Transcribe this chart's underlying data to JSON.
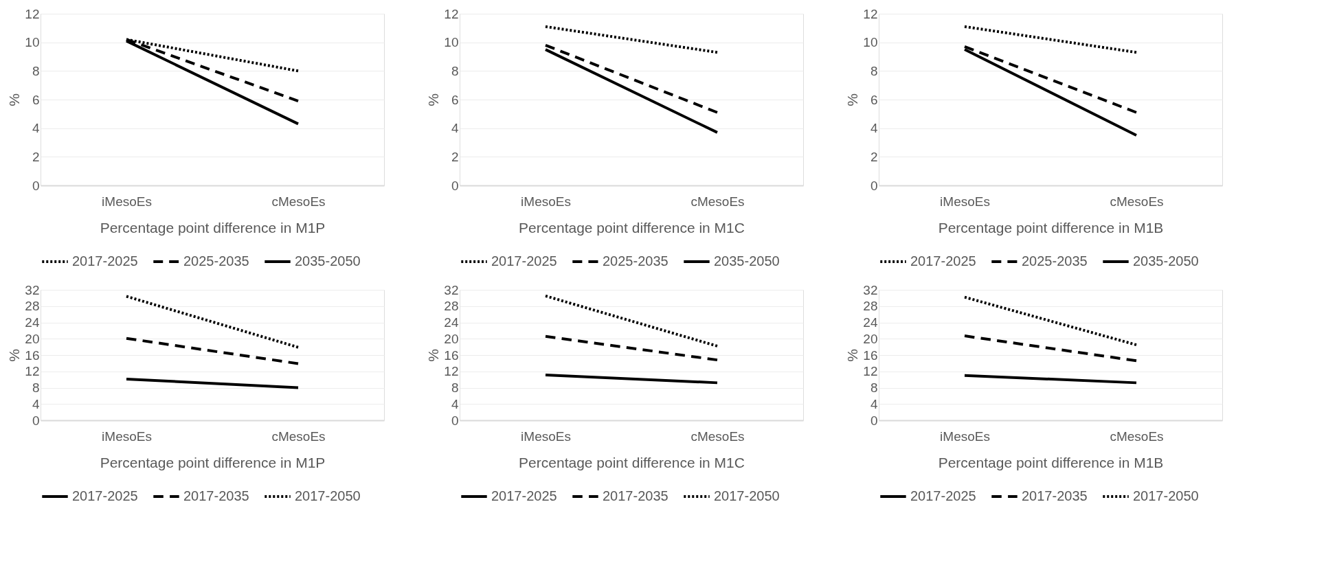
{
  "chart_data": [
    {
      "type": "line",
      "xlabel": "Percentage point difference in M1P",
      "ylabel": "%",
      "categories": [
        "iMesoEs",
        "cMesoEs"
      ],
      "ylim": [
        0,
        12
      ],
      "yticks": [
        0,
        2,
        4,
        6,
        8,
        10,
        12
      ],
      "grid": "y",
      "legend": "bottom",
      "series": [
        {
          "name": "2017-2025",
          "color": "#000000",
          "line_style": "dotted",
          "values": [
            10.2,
            8.0
          ]
        },
        {
          "name": "2025-2035",
          "color": "#000000",
          "line_style": "dashed",
          "values": [
            10.2,
            5.9
          ]
        },
        {
          "name": "2035-2050",
          "color": "#000000",
          "line_style": "solid",
          "values": [
            10.1,
            4.3
          ]
        }
      ]
    },
    {
      "type": "line",
      "xlabel": "Percentage point difference in M1C",
      "ylabel": "%",
      "categories": [
        "iMesoEs",
        "cMesoEs"
      ],
      "ylim": [
        0,
        12
      ],
      "yticks": [
        0,
        2,
        4,
        6,
        8,
        10,
        12
      ],
      "grid": "y",
      "legend": "bottom",
      "series": [
        {
          "name": "2017-2025",
          "color": "#000000",
          "line_style": "dotted",
          "values": [
            11.1,
            9.3
          ]
        },
        {
          "name": "2025-2035",
          "color": "#000000",
          "line_style": "dashed",
          "values": [
            9.8,
            5.1
          ]
        },
        {
          "name": "2035-2050",
          "color": "#000000",
          "line_style": "solid",
          "values": [
            9.5,
            3.7
          ]
        }
      ]
    },
    {
      "type": "line",
      "xlabel": "Percentage point difference in M1B",
      "ylabel": "%",
      "categories": [
        "iMesoEs",
        "cMesoEs"
      ],
      "ylim": [
        0,
        12
      ],
      "yticks": [
        0,
        2,
        4,
        6,
        8,
        10,
        12
      ],
      "grid": "y",
      "legend": "bottom",
      "series": [
        {
          "name": "2017-2025",
          "color": "#000000",
          "line_style": "dotted",
          "values": [
            11.1,
            9.3
          ]
        },
        {
          "name": "2025-2035",
          "color": "#000000",
          "line_style": "dashed",
          "values": [
            9.7,
            5.1
          ]
        },
        {
          "name": "2035-2050",
          "color": "#000000",
          "line_style": "solid",
          "values": [
            9.5,
            3.5
          ]
        }
      ]
    },
    {
      "type": "line",
      "xlabel": "Percentage point difference in M1P",
      "ylabel": "%",
      "categories": [
        "iMesoEs",
        "cMesoEs"
      ],
      "ylim": [
        0,
        32
      ],
      "yticks": [
        0,
        4,
        8,
        12,
        16,
        20,
        24,
        28,
        32
      ],
      "grid": "y",
      "legend": "bottom",
      "series": [
        {
          "name": "2017-2025",
          "color": "#000000",
          "line_style": "solid",
          "values": [
            10.1,
            8.0
          ]
        },
        {
          "name": "2017-2035",
          "color": "#000000",
          "line_style": "dashed",
          "values": [
            20.1,
            13.9
          ]
        },
        {
          "name": "2017-2050",
          "color": "#000000",
          "line_style": "dotted",
          "values": [
            30.4,
            17.9
          ]
        }
      ]
    },
    {
      "type": "line",
      "xlabel": "Percentage point difference in M1C",
      "ylabel": "%",
      "categories": [
        "iMesoEs",
        "cMesoEs"
      ],
      "ylim": [
        0,
        32
      ],
      "yticks": [
        0,
        4,
        8,
        12,
        16,
        20,
        24,
        28,
        32
      ],
      "grid": "y",
      "legend": "bottom",
      "series": [
        {
          "name": "2017-2025",
          "color": "#000000",
          "line_style": "solid",
          "values": [
            11.1,
            9.2
          ]
        },
        {
          "name": "2017-2035",
          "color": "#000000",
          "line_style": "dashed",
          "values": [
            20.6,
            14.8
          ]
        },
        {
          "name": "2017-2050",
          "color": "#000000",
          "line_style": "dotted",
          "values": [
            30.5,
            18.2
          ]
        }
      ]
    },
    {
      "type": "line",
      "xlabel": "Percentage point difference in M1B",
      "ylabel": "%",
      "categories": [
        "iMesoEs",
        "cMesoEs"
      ],
      "ylim": [
        0,
        32
      ],
      "yticks": [
        0,
        4,
        8,
        12,
        16,
        20,
        24,
        28,
        32
      ],
      "grid": "y",
      "legend": "bottom",
      "series": [
        {
          "name": "2017-2025",
          "color": "#000000",
          "line_style": "solid",
          "values": [
            11.0,
            9.2
          ]
        },
        {
          "name": "2017-2035",
          "color": "#000000",
          "line_style": "dashed",
          "values": [
            20.7,
            14.6
          ]
        },
        {
          "name": "2017-2050",
          "color": "#000000",
          "line_style": "dotted",
          "values": [
            30.2,
            18.5
          ]
        }
      ]
    }
  ]
}
